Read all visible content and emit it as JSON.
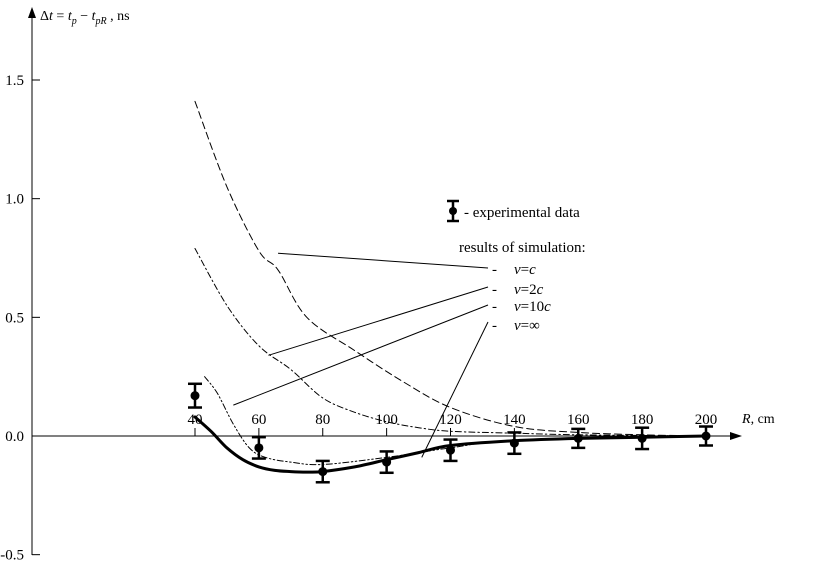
{
  "chart_data": {
    "type": "line",
    "title": "",
    "ylabel": "Δt = t_p − t_pR , ns",
    "ylabel_parts": {
      "delta": "Δ",
      "t": "t",
      "eq": " = ",
      "tp": "t",
      "tp_sub": "p",
      "minus": " − ",
      "tpr": "t",
      "tpr_sub": "pR",
      "unit": " , ns"
    },
    "xlabel": "R, cm",
    "xlabel_parts": {
      "var": "R",
      "unit": ", cm"
    },
    "xlim": [
      40,
      200
    ],
    "ylim": [
      -0.5,
      1.5
    ],
    "x_ticks": [
      "40",
      "60",
      "80",
      "100",
      "120",
      "140",
      "160",
      "180",
      "200"
    ],
    "y_ticks": [
      "1.5",
      "1.0",
      "0.5",
      "0.0",
      "-0.5"
    ],
    "grid": false,
    "legend_position": "right",
    "legend": {
      "experimental_label": "- experimental data",
      "simulation_heading": "results of simulation:",
      "dash": "-",
      "entries": [
        {
          "var": "v",
          "rel": "=",
          "coef": "",
          "sym": "c"
        },
        {
          "var": "v",
          "rel": "=",
          "coef": "2",
          "sym": "c"
        },
        {
          "var": "v",
          "rel": "=",
          "coef": "10",
          "sym": "c"
        },
        {
          "var": "v",
          "rel": "=",
          "coef": "",
          "sym": "∞"
        }
      ]
    },
    "experimental": {
      "name": "experimental data",
      "points": [
        {
          "x": 40,
          "y": 0.17,
          "err": 0.05
        },
        {
          "x": 60,
          "y": -0.05,
          "err": 0.045
        },
        {
          "x": 80,
          "y": -0.15,
          "err": 0.045
        },
        {
          "x": 100,
          "y": -0.11,
          "err": 0.045
        },
        {
          "x": 120,
          "y": -0.06,
          "err": 0.045
        },
        {
          "x": 140,
          "y": -0.03,
          "err": 0.045
        },
        {
          "x": 160,
          "y": -0.01,
          "err": 0.04
        },
        {
          "x": 180,
          "y": -0.01,
          "err": 0.045
        },
        {
          "x": 200,
          "y": 0.0,
          "err": 0.04
        }
      ]
    },
    "series": [
      {
        "style": "solid-thick",
        "x": [
          40,
          45,
          50,
          55,
          60,
          65,
          70,
          75,
          80,
          90,
          100,
          110,
          120,
          140,
          160,
          180,
          200
        ],
        "y": [
          0.08,
          0.02,
          -0.05,
          -0.1,
          -0.13,
          -0.145,
          -0.15,
          -0.152,
          -0.15,
          -0.13,
          -0.1,
          -0.07,
          -0.04,
          -0.02,
          -0.01,
          -0.005,
          0.0
        ]
      },
      {
        "style": "dashed",
        "x": [
          40,
          50,
          60,
          66,
          75,
          90,
          105,
          120,
          140,
          160,
          180,
          200
        ],
        "y": [
          1.41,
          1.05,
          0.78,
          0.7,
          0.5,
          0.36,
          0.23,
          0.12,
          0.04,
          0.015,
          0.005,
          0.0
        ]
      },
      {
        "style": "dash-dot",
        "x": [
          40,
          50,
          60,
          70,
          80,
          90,
          100,
          110,
          120,
          140,
          160,
          200
        ],
        "y": [
          0.79,
          0.55,
          0.38,
          0.28,
          0.16,
          0.1,
          0.06,
          0.035,
          0.02,
          0.012,
          0.005,
          0.0
        ]
      },
      {
        "style": "dash-dot-dot",
        "x": [
          43,
          47,
          52,
          57,
          62,
          70,
          80,
          100,
          120,
          140,
          200
        ],
        "y": [
          0.25,
          0.18,
          0.05,
          -0.05,
          -0.09,
          -0.11,
          -0.12,
          -0.09,
          -0.05,
          -0.02,
          0.0
        ]
      }
    ],
    "annotation_lines": [
      {
        "from": [
          66,
          0.77
        ],
        "to_entry": 0
      },
      {
        "from": [
          63,
          0.34
        ],
        "to_entry": 1
      },
      {
        "from": [
          52,
          0.13
        ],
        "to_entry": 2
      },
      {
        "from": [
          111,
          -0.09
        ],
        "to_entry": 3
      }
    ]
  }
}
